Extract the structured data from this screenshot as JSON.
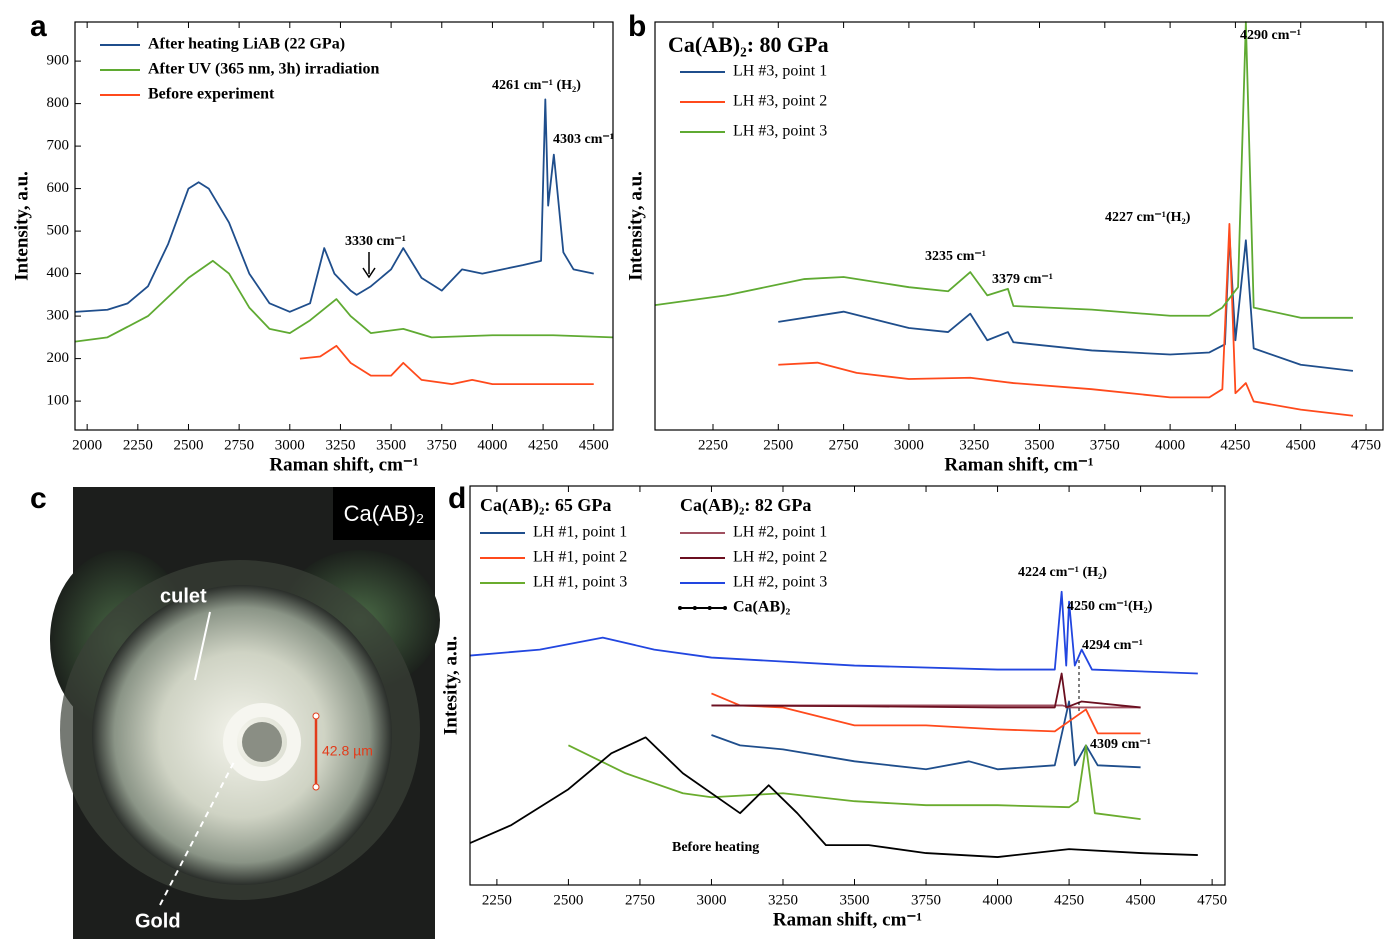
{
  "chart_data": [
    {
      "type": "line",
      "panel": "a",
      "xlabel": "Raman shift, cm⁻¹",
      "ylabel": "Intensity, a.u.",
      "xlim": [
        1940,
        4595
      ],
      "ylim": [
        32,
        992
      ],
      "xticks": [
        2000,
        2250,
        2500,
        2750,
        3000,
        3250,
        3500,
        3750,
        4000,
        4250,
        4500
      ],
      "yticks": [
        100,
        200,
        300,
        400,
        500,
        600,
        700,
        800,
        900
      ],
      "annotations": [
        "4261 cm⁻¹ (H₂)",
        "4303 cm⁻¹",
        "3330 cm⁻¹"
      ],
      "series": [
        {
          "name": "After heating LiAB (22 GPa)",
          "color": "#1f4e8c",
          "x": [
            1940,
            2100,
            2200,
            2300,
            2400,
            2500,
            2550,
            2600,
            2700,
            2800,
            2900,
            3000,
            3100,
            3170,
            3220,
            3300,
            3330,
            3400,
            3500,
            3560,
            3650,
            3750,
            3850,
            3950,
            4050,
            4150,
            4240,
            4261,
            4275,
            4303,
            4350,
            4400,
            4500
          ],
          "values": [
            310,
            315,
            330,
            370,
            470,
            600,
            615,
            600,
            520,
            400,
            330,
            310,
            330,
            460,
            400,
            360,
            350,
            370,
            410,
            460,
            390,
            360,
            410,
            400,
            410,
            420,
            430,
            810,
            560,
            680,
            450,
            410,
            400
          ]
        },
        {
          "name": "After UV (365 nm, 3h) irradiation",
          "color": "#5faa32",
          "x": [
            1940,
            2100,
            2300,
            2500,
            2620,
            2700,
            2800,
            2900,
            3000,
            3100,
            3230,
            3300,
            3400,
            3560,
            3700,
            4000,
            4300,
            4595
          ],
          "values": [
            240,
            250,
            300,
            390,
            430,
            400,
            320,
            270,
            260,
            290,
            340,
            300,
            260,
            270,
            250,
            255,
            255,
            250
          ]
        },
        {
          "name": "Before experiment",
          "color": "#ff4a1c",
          "x": [
            3050,
            3150,
            3230,
            3300,
            3400,
            3500,
            3560,
            3650,
            3800,
            3900,
            4000,
            4200,
            4500
          ],
          "values": [
            200,
            205,
            230,
            190,
            160,
            160,
            190,
            150,
            140,
            150,
            140,
            140,
            140
          ]
        }
      ]
    },
    {
      "type": "line",
      "panel": "b",
      "title": "Ca(AB)₂: 80 GPa",
      "xlabel": "Raman shift, cm⁻¹",
      "ylabel": "Intensity, a.u.",
      "xlim": [
        2028,
        4815
      ],
      "ylim": [
        0,
        100
      ],
      "xticks": [
        2250,
        2500,
        2750,
        3000,
        3250,
        3500,
        3750,
        4000,
        4250,
        4500,
        4750
      ],
      "annotations": [
        "4290 cm⁻¹",
        "4227 cm⁻¹(H₂)",
        "3235 cm⁻¹",
        "3379 cm⁻¹"
      ],
      "series": [
        {
          "name": "LH #3, point 1",
          "color": "#1f4e8c",
          "x": [
            2500,
            2750,
            3000,
            3150,
            3235,
            3300,
            3379,
            3400,
            3700,
            4000,
            4150,
            4210,
            4227,
            4250,
            4290,
            4320,
            4500,
            4700
          ],
          "values": [
            26.5,
            29,
            25,
            24,
            28.5,
            22,
            24,
            21.5,
            19.5,
            18.5,
            19,
            21,
            48,
            22,
            46.5,
            20,
            16,
            14.5
          ]
        },
        {
          "name": "LH #3, point 2",
          "color": "#ff4a1c",
          "x": [
            2500,
            2650,
            2800,
            3000,
            3235,
            3400,
            3700,
            4000,
            4150,
            4200,
            4227,
            4250,
            4290,
            4320,
            4500,
            4700
          ],
          "values": [
            16,
            16.5,
            14,
            12.5,
            12.8,
            11.5,
            10,
            8,
            8,
            10,
            50.5,
            9,
            11.5,
            7,
            5,
            3.5
          ]
        },
        {
          "name": "LH #3, point 3",
          "color": "#5faa32",
          "x": [
            2028,
            2300,
            2600,
            2750,
            3000,
            3150,
            3235,
            3300,
            3379,
            3400,
            3700,
            4000,
            4150,
            4200,
            4260,
            4290,
            4320,
            4500,
            4700
          ],
          "values": [
            30.6,
            33,
            37,
            37.5,
            35,
            34,
            38.7,
            33,
            34.6,
            30.4,
            29.5,
            28,
            28,
            30,
            35,
            100,
            30,
            27.5,
            27.5
          ]
        }
      ]
    },
    {
      "type": "line",
      "panel": "d",
      "xlabel": "Raman shift, cm⁻¹",
      "ylabel": "Intesity, a.u.",
      "xlim": [
        2156,
        4795
      ],
      "ylim": [
        0,
        100
      ],
      "xticks": [
        2250,
        2500,
        2750,
        3000,
        3250,
        3500,
        3750,
        4000,
        4250,
        4500,
        4750
      ],
      "legend_groups": [
        "Ca(AB)₂: 65 GPa",
        "Ca(AB)₂: 82 GPa"
      ],
      "annotations": [
        "4224 cm⁻¹ (H₂)",
        "4250 cm⁻¹(H₂)",
        "4294 cm⁻¹",
        "4309 cm⁻¹",
        "Before heating"
      ],
      "series": [
        {
          "name": "LH #1, point 1",
          "color": "#1f4e8c",
          "x": [
            3000,
            3100,
            3250,
            3500,
            3750,
            3900,
            4000,
            4200,
            4250,
            4270,
            4309,
            4350,
            4500
          ],
          "values": [
            37.6,
            35,
            34,
            31,
            29,
            31,
            29,
            30,
            46,
            30,
            35,
            30,
            29.5
          ]
        },
        {
          "name": "LH #1, point 2",
          "color": "#ff4a1c",
          "x": [
            3000,
            3100,
            3250,
            3500,
            3750,
            4000,
            4200,
            4309,
            4350,
            4500
          ],
          "values": [
            48,
            45,
            44.5,
            40,
            40,
            39,
            38.5,
            44,
            38,
            38
          ]
        },
        {
          "name": "LH #1, point 3",
          "color": "#6aac2e",
          "x": [
            2500,
            2700,
            2900,
            3000,
            3250,
            3500,
            3750,
            4000,
            4250,
            4280,
            4309,
            4340,
            4500
          ],
          "values": [
            35,
            28,
            23,
            22,
            23,
            21,
            20,
            20,
            19.5,
            21,
            35,
            18,
            16.5
          ]
        },
        {
          "name": "LH #2, point 1",
          "color": "#a05060",
          "x": [
            3000,
            3500,
            4000,
            4227,
            4250,
            4500
          ],
          "values": [
            45,
            45,
            45,
            45,
            44.5,
            44.5
          ]
        },
        {
          "name": "LH #2, point 2",
          "color": "#6b0f20",
          "x": [
            3000,
            3500,
            4000,
            4200,
            4224,
            4240,
            4294,
            4500
          ],
          "values": [
            45,
            44.8,
            44.5,
            44.5,
            53,
            44.5,
            46,
            44.5
          ]
        },
        {
          "name": "LH #2, point 3",
          "color": "#2246e0",
          "x": [
            2156,
            2400,
            2620,
            2800,
            3000,
            3500,
            4000,
            4200,
            4224,
            4240,
            4250,
            4270,
            4294,
            4330,
            4700
          ],
          "values": [
            57.5,
            59,
            62,
            59,
            57,
            55,
            54,
            54,
            73.5,
            55,
            71,
            55,
            59,
            54,
            53
          ]
        },
        {
          "name": "Ca(AB)₂",
          "color": "#000000",
          "marker": "dot",
          "x": [
            2156,
            2300,
            2500,
            2650,
            2770,
            2900,
            3100,
            3200,
            3300,
            3400,
            3550,
            3750,
            4000,
            4250,
            4500,
            4700
          ],
          "values": [
            10.5,
            15,
            24,
            33,
            37,
            28,
            18,
            25,
            18,
            10,
            10,
            8,
            7,
            9,
            8,
            7.5
          ]
        }
      ]
    }
  ],
  "image_panel": {
    "panel": "c",
    "label": "Ca(AB)₂",
    "annotations": [
      "culet",
      "Gold",
      "42.8 µm"
    ]
  }
}
